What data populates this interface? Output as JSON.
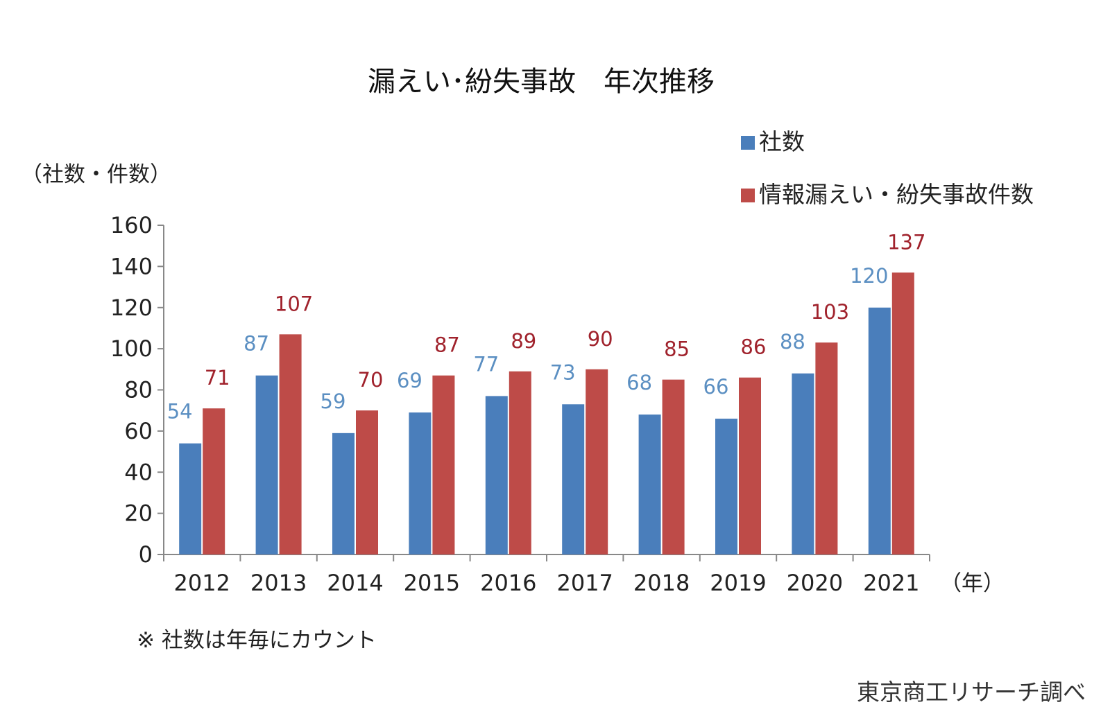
{
  "chart_data": {
    "type": "bar",
    "title": "漏えい･紛失事故　年次推移",
    "ylabel": "（社数・件数）",
    "xlabel": "（年）",
    "ylim": [
      0,
      160
    ],
    "yticks": [
      0,
      20,
      40,
      60,
      80,
      100,
      120,
      140,
      160
    ],
    "categories": [
      "2012",
      "2013",
      "2014",
      "2015",
      "2016",
      "2017",
      "2018",
      "2019",
      "2020",
      "2021"
    ],
    "series": [
      {
        "name": "社数",
        "color": "#4a7ebb",
        "label_color": "#5b8fc2",
        "values": [
          54,
          87,
          59,
          69,
          77,
          73,
          68,
          66,
          88,
          120
        ]
      },
      {
        "name": "情報漏えい・紛失事故件数",
        "color": "#be4b48",
        "label_color": "#a0222c",
        "values": [
          71,
          107,
          70,
          87,
          89,
          90,
          85,
          86,
          103,
          137
        ]
      }
    ],
    "legend_position": "top-right",
    "grid": false,
    "note": "※ 社数は年毎にカウント",
    "source": "東京商工リサーチ調べ"
  }
}
